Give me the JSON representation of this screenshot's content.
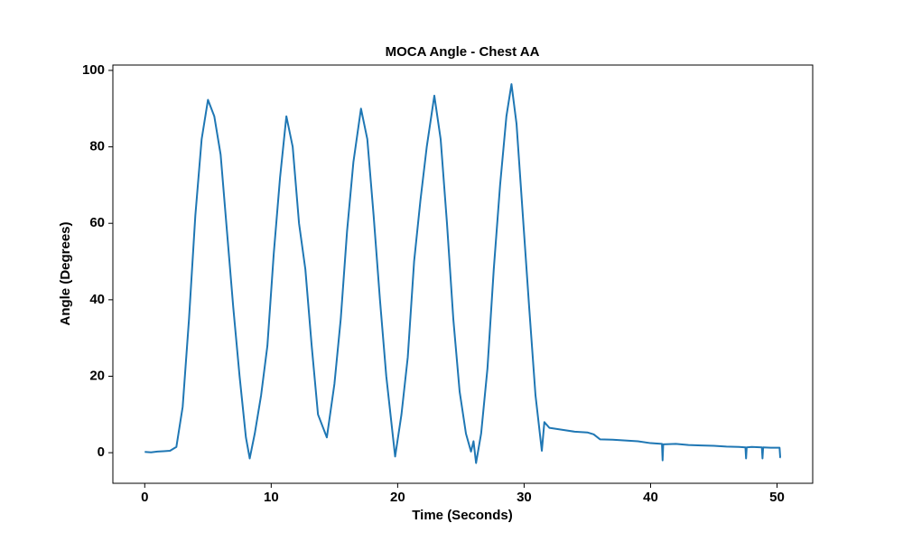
{
  "chart_data": {
    "type": "line",
    "title": "MOCA Angle - Chest AA",
    "xlabel": "Time (Seconds)",
    "ylabel": "Angle (Degrees)",
    "x": [
      0,
      0.5,
      1,
      1.5,
      2,
      2.5,
      3,
      3.5,
      4,
      4.5,
      5,
      5.5,
      6,
      6.5,
      7,
      7.5,
      8,
      8.3,
      8.7,
      9.2,
      9.7,
      10.2,
      10.7,
      11.2,
      11.7,
      12.2,
      12.7,
      13.2,
      13.7,
      14.4,
      15,
      15.5,
      16,
      16.5,
      17.1,
      17.6,
      18.1,
      18.6,
      19.1,
      19.8,
      20.3,
      20.8,
      21.3,
      21.8,
      22.3,
      22.9,
      23.4,
      23.9,
      24.4,
      24.9,
      25.4,
      25.8,
      26.0,
      26.2,
      26.6,
      27.1,
      27.6,
      28.1,
      28.6,
      29.0,
      29.4,
      29.9,
      30.4,
      30.9,
      31.4,
      31.6,
      32,
      33,
      34,
      35,
      35.5,
      36,
      37,
      38,
      39,
      40,
      40.9,
      40.95,
      41,
      42,
      43,
      44,
      45,
      46,
      47,
      47.5,
      47.55,
      47.6,
      48,
      48.8,
      48.85,
      48.9,
      49.5,
      50.2,
      50.25,
      50.3
    ],
    "values": [
      0.2,
      0.1,
      0.3,
      0.4,
      0.5,
      1.5,
      12,
      35,
      62,
      82,
      92.3,
      88,
      78,
      58,
      38,
      20,
      4,
      -1.5,
      5,
      15,
      28,
      52,
      72,
      88,
      80,
      60,
      48,
      28,
      10,
      4,
      18,
      35,
      58,
      76,
      90,
      82,
      62,
      40,
      20,
      -1,
      10,
      25,
      50,
      66,
      80,
      93.4,
      82,
      60,
      35,
      16,
      5,
      0.3,
      3,
      -2.7,
      5,
      22,
      48,
      70,
      88,
      96.4,
      86,
      62,
      38,
      15,
      0.5,
      8,
      6.5,
      6,
      5.5,
      5.3,
      4.8,
      3.5,
      3.4,
      3.2,
      3,
      2.5,
      2.3,
      -2,
      2.2,
      2.3,
      2,
      1.9,
      1.8,
      1.6,
      1.5,
      1.4,
      -1.5,
      1.4,
      1.5,
      1.4,
      -1.5,
      1.4,
      1.3,
      1.3,
      -1.2,
      -1.2
    ],
    "color": "#1f77b4",
    "xlim": [
      -2.52,
      52.82
    ],
    "xticks": [
      0,
      10,
      20,
      30,
      40,
      50
    ],
    "ylim": [
      -8.0,
      101.4
    ],
    "yticks": [
      0,
      20,
      40,
      60,
      80,
      100
    ],
    "grid": false
  }
}
